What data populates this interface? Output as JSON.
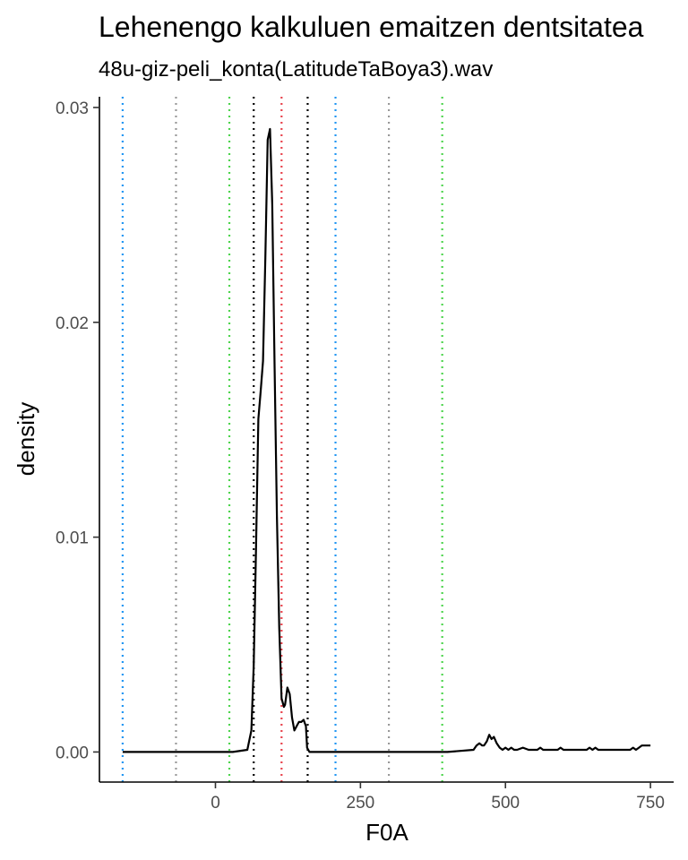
{
  "chart_data": {
    "type": "line",
    "title": "Lehenengo kalkuluen emaitzen dentsitatea",
    "subtitle": "48u-giz-peli_konta(LatitudeTaBoya3).wav",
    "xlabel": "F0A",
    "ylabel": "density",
    "xlim": [
      -200,
      790
    ],
    "ylim": [
      -0.0014,
      0.0305
    ],
    "x_ticks": [
      0,
      250,
      500,
      750
    ],
    "x_tick_labels": [
      "0",
      "250",
      "500",
      "750"
    ],
    "y_ticks": [
      0.0,
      0.01,
      0.02,
      0.03
    ],
    "y_tick_labels": [
      "0.00",
      "0.01",
      "0.02",
      "0.03"
    ],
    "grid": false,
    "series": [
      {
        "x": [
          -160,
          -100,
          -50,
          0,
          30,
          55,
          62,
          66,
          70,
          74,
          78,
          82,
          86,
          90,
          94,
          98,
          102,
          106,
          110,
          114,
          118,
          120,
          124,
          128,
          132,
          136,
          140,
          144,
          148,
          152,
          156,
          158,
          162,
          166,
          170,
          200,
          300,
          400,
          445,
          450,
          455,
          460,
          463,
          468,
          472,
          476,
          480,
          485,
          490,
          495,
          500,
          505,
          510,
          515,
          520,
          530,
          540,
          555,
          560,
          565,
          575,
          590,
          595,
          600,
          620,
          640,
          645,
          650,
          655,
          660,
          665,
          680,
          700,
          715,
          720,
          725,
          730,
          735,
          740,
          745,
          750
        ],
        "y": [
          0,
          0,
          0,
          0,
          0,
          0.0001,
          0.001,
          0.004,
          0.0095,
          0.0155,
          0.0168,
          0.0182,
          0.023,
          0.0285,
          0.029,
          0.0255,
          0.018,
          0.011,
          0.0058,
          0.0025,
          0.0021,
          0.0022,
          0.003,
          0.0027,
          0.0016,
          0.001,
          0.0012,
          0.0014,
          0.0014,
          0.0015,
          0.0012,
          0.0002,
          0,
          0,
          0,
          0,
          0,
          0,
          0.0001,
          0.0003,
          0.0004,
          0.0003,
          0.0003,
          0.0005,
          0.0008,
          0.0006,
          0.0007,
          0.0004,
          0.0002,
          0.0001,
          0.0002,
          0.0001,
          0.0002,
          0.0001,
          0.0001,
          0.0002,
          0.0001,
          0.0001,
          0.0002,
          0.0001,
          0.0001,
          0.0001,
          0.0002,
          0.0001,
          0.0001,
          0.0001,
          0.0002,
          0.0001,
          0.0002,
          0.0001,
          0.0001,
          0.0001,
          0.0001,
          0.0001,
          0.0002,
          0.0001,
          0.0002,
          0.0003,
          0.0003,
          0.0003,
          0.0003
        ]
      }
    ],
    "vlines": [
      {
        "x": -160,
        "color": "#2196F3"
      },
      {
        "x": -68,
        "color": "#999999"
      },
      {
        "x": 24,
        "color": "#4CD44C"
      },
      {
        "x": 66,
        "color": "#000000"
      },
      {
        "x": 114,
        "color": "#E8424B"
      },
      {
        "x": 159,
        "color": "#000000"
      },
      {
        "x": 207,
        "color": "#2196F3"
      },
      {
        "x": 299,
        "color": "#999999"
      },
      {
        "x": 391,
        "color": "#4CD44C"
      }
    ]
  }
}
